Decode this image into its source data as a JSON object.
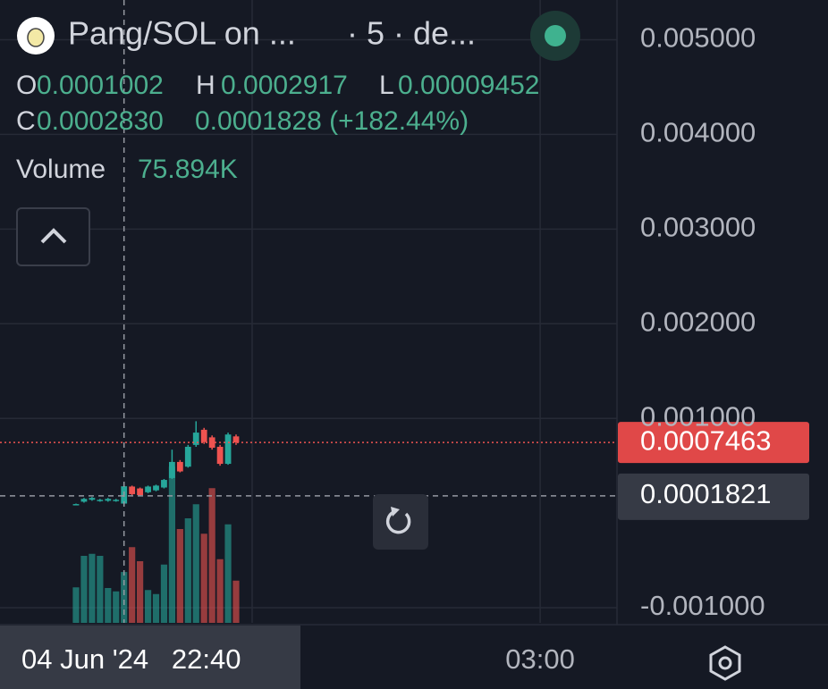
{
  "chart_data": {
    "type": "candlestick",
    "title": "Pang/SOL on ...",
    "subtitle": "· 5 · de...",
    "legend": {
      "open_label": "O",
      "open": "0.0001002",
      "high_label": "H",
      "high": "0.0002917",
      "low_label": "L",
      "low": "0.00009452",
      "close_label": "C",
      "close": "0.0002830",
      "change": "0.0001828 (+182.44%)",
      "volume_label": "Volume",
      "volume": "75.894K"
    },
    "categories": [
      null,
      null,
      null,
      null,
      null,
      null,
      null,
      null,
      null,
      null,
      null,
      null,
      null,
      null,
      null,
      null,
      null,
      null,
      null,
      null,
      null
    ],
    "open": [
      9e-05,
      0.00012,
      0.00014,
      0.00013,
      0.00013,
      0.00013,
      0.0001002,
      0.00028,
      0.00026,
      0.00022,
      0.00024,
      0.00027,
      0.00037,
      0.00054,
      0.00049,
      0.00072,
      0.00088,
      0.0008,
      0.0007,
      0.00052,
      0.00081
    ],
    "high": [
      0.0001,
      0.00016,
      0.00017,
      0.00015,
      0.00016,
      0.00015,
      0.0002917,
      0.00029,
      0.00027,
      0.00029,
      0.0003,
      0.00036,
      0.00067,
      0.00056,
      0.00072,
      0.00097,
      0.0009,
      0.00082,
      0.00072,
      0.00085,
      0.00083
    ],
    "low": [
      8.5e-05,
      0.00011,
      0.00013,
      0.00012,
      0.00012,
      0.00012,
      9.452e-05,
      0.00019,
      0.00018,
      0.00021,
      0.00023,
      0.00026,
      0.00036,
      0.00043,
      0.00048,
      0.0007,
      0.00073,
      0.00067,
      0.0005,
      0.00051,
      0.00072
    ],
    "close": [
      9.5e-05,
      0.00015,
      0.00016,
      0.00014,
      0.00015,
      0.00014,
      0.000283,
      0.0002,
      0.00019,
      0.00028,
      0.00029,
      0.00035,
      0.00054,
      0.00044,
      0.0007,
      0.00085,
      0.00075,
      0.00069,
      0.00052,
      0.00083,
      0.0007463
    ],
    "volume": [
      53000,
      100000,
      103000,
      100000,
      52000,
      47000,
      75894,
      113000,
      92000,
      49000,
      43000,
      87000,
      233000,
      140000,
      156000,
      177000,
      133000,
      201000,
      95000,
      147000,
      63000
    ],
    "volume_ylim": [
      0,
      240000
    ],
    "up_color": "#26a69a",
    "down_color": "#ef5350",
    "ylim": [
      -0.00116,
      0.00542
    ],
    "yticks": [
      {
        "value": 0.005,
        "label": "0.005000"
      },
      {
        "value": 0.004,
        "label": "0.004000"
      },
      {
        "value": 0.003,
        "label": "0.003000"
      },
      {
        "value": 0.002,
        "label": "0.002000"
      },
      {
        "value": 0.001,
        "label": "0.001000"
      },
      {
        "value": -0.001,
        "label": "-0.001000"
      }
    ],
    "last_price": {
      "value": 0.0007463,
      "label": "0.0007463"
    },
    "crosshair_price": {
      "value": 0.0001821,
      "label": "0.0001821"
    },
    "crosshair_index": 6,
    "crosshair_time": "04 Jun '24   22:40",
    "xticks": [
      {
        "value": 58,
        "label": "03:00"
      }
    ],
    "grid": true
  }
}
